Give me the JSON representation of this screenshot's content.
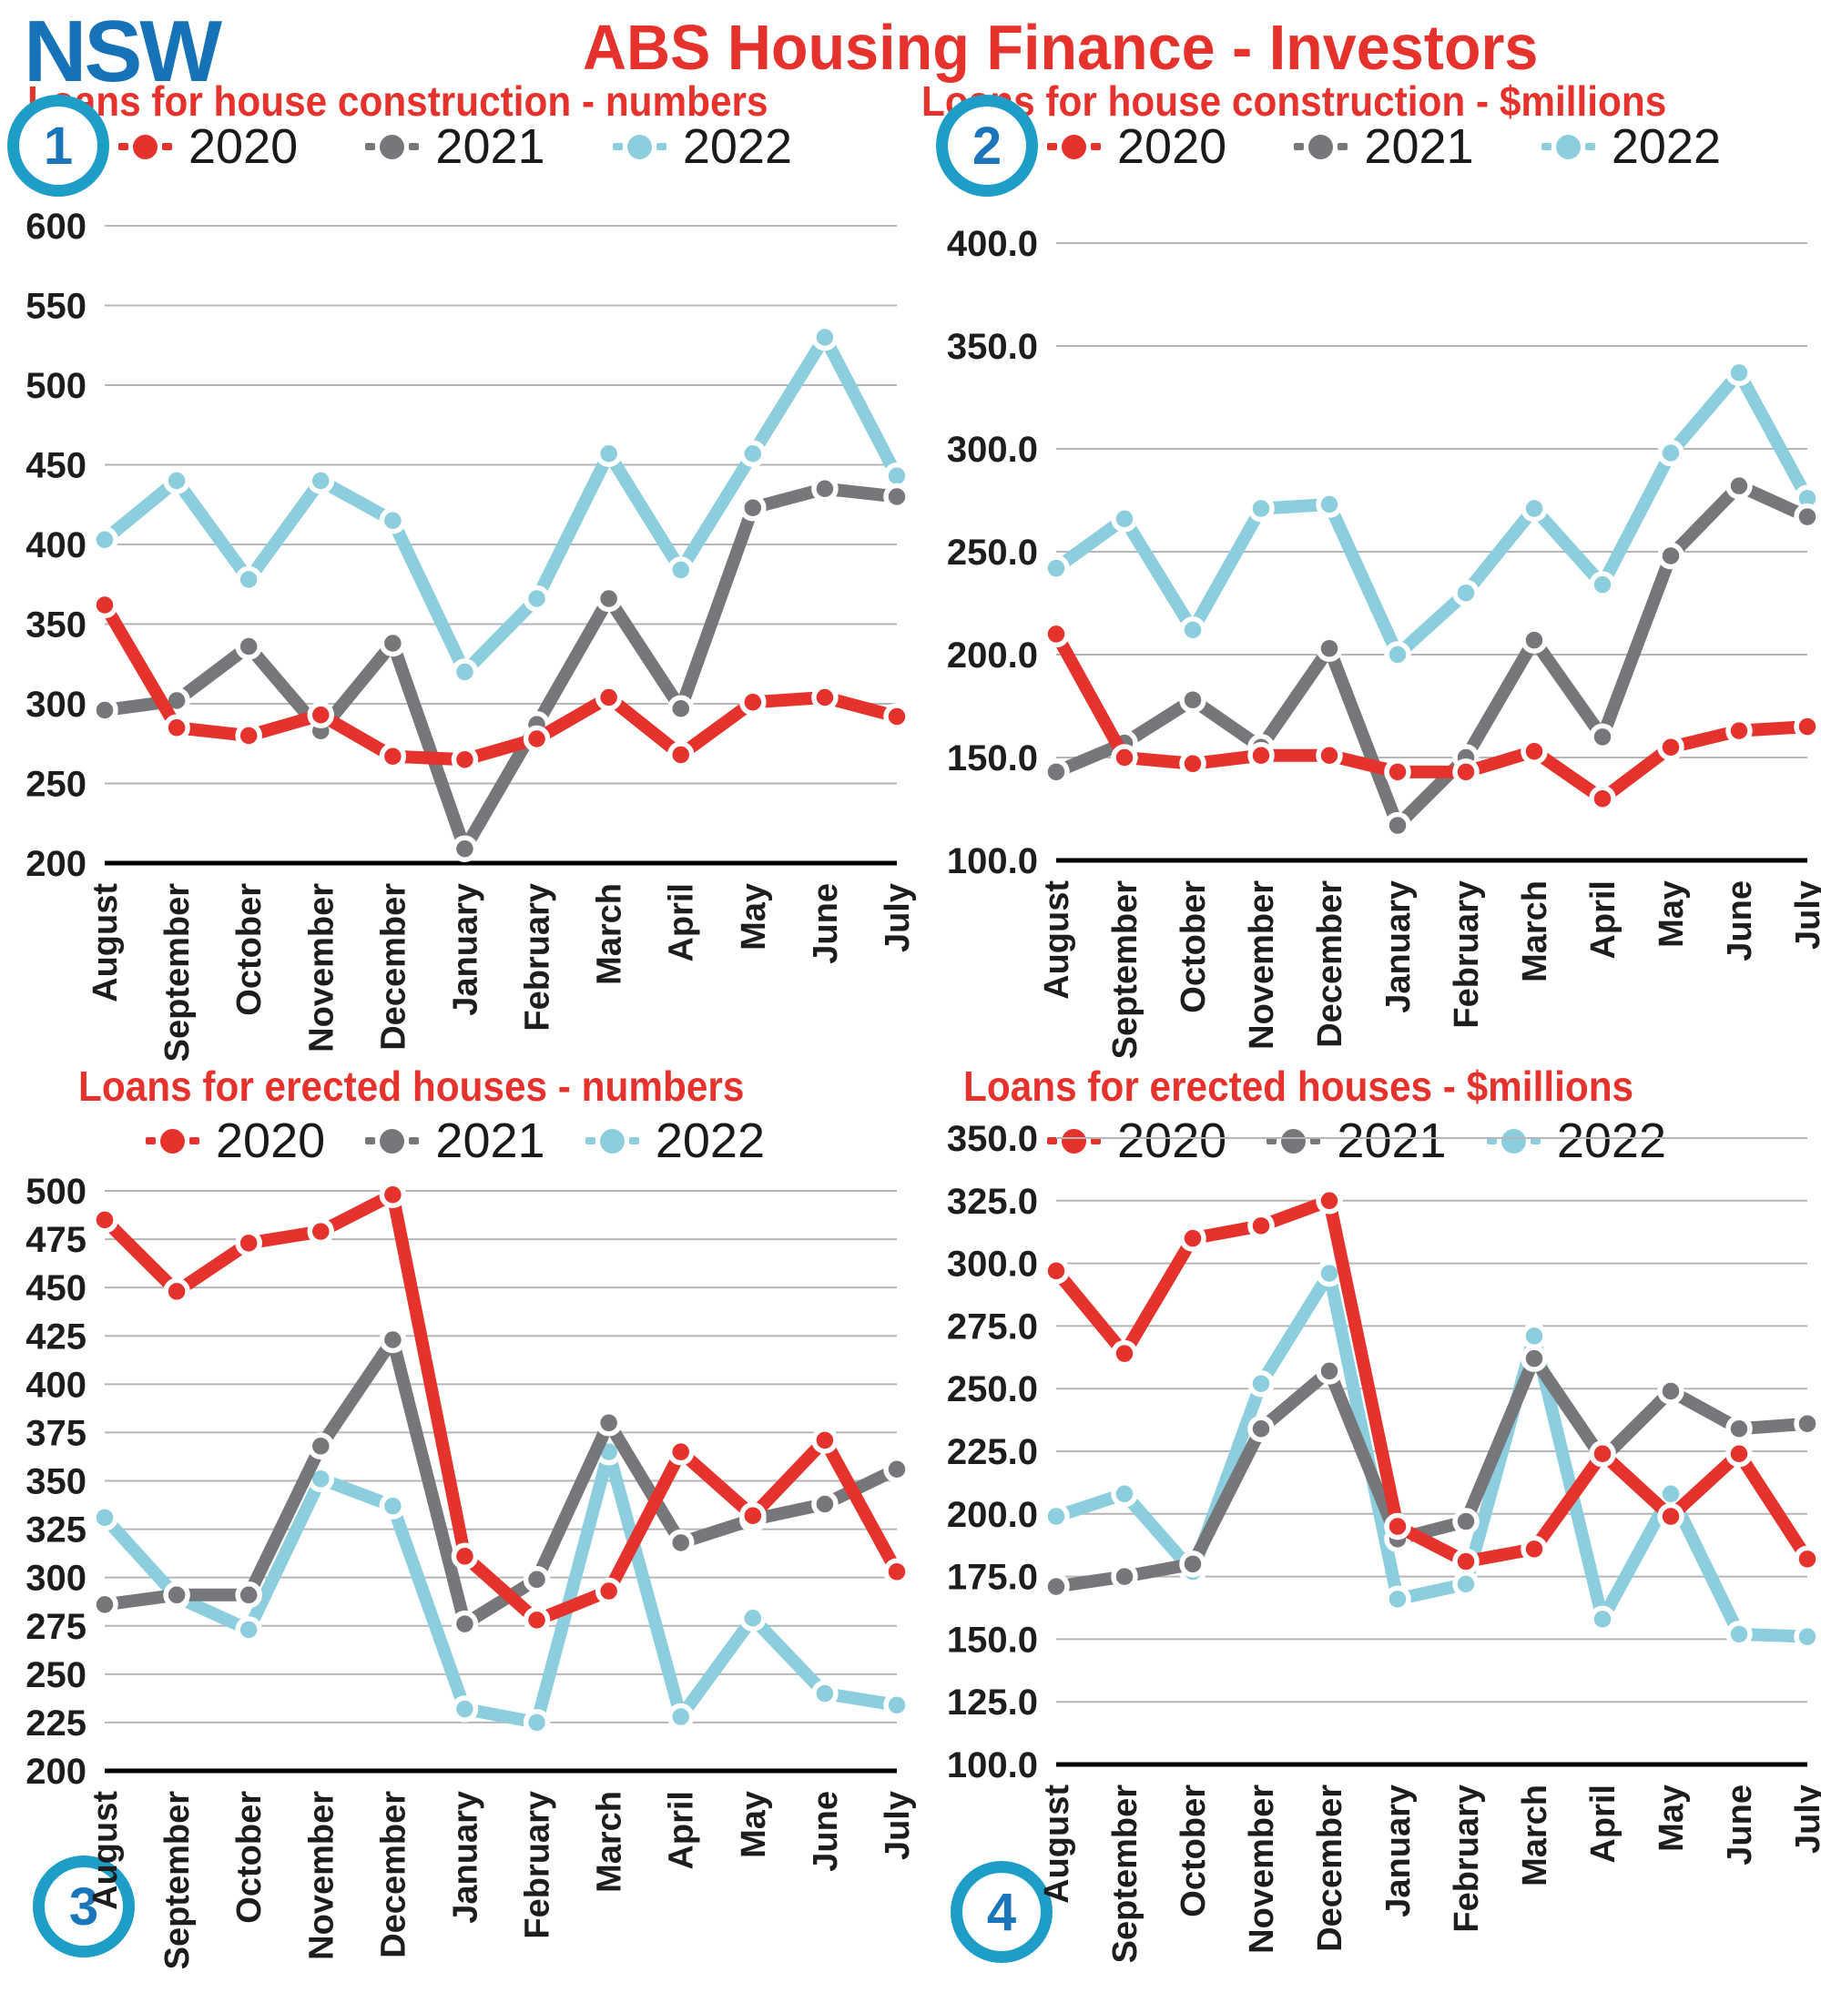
{
  "header": {
    "region": "NSW",
    "title": "ABS Housing Finance - Investors"
  },
  "palette": {
    "red_2020": "#e5322c",
    "gray_2021": "#76777a",
    "blue_2022": "#8dcede",
    "title_red": "#e5322c",
    "nsw_blue": "#1673b8",
    "badge_ring": "#1e9ec6",
    "badge_number": "#1b75bb",
    "gridline": "#b5b6b8",
    "axis": "#000000",
    "text": "#1d1d1f"
  },
  "months": [
    "August",
    "September",
    "October",
    "November",
    "December",
    "January",
    "February",
    "March",
    "April",
    "May",
    "June",
    "July"
  ],
  "legend_years": [
    "2020",
    "2021",
    "2022"
  ],
  "chart_data": [
    {
      "type": "line",
      "badge": "1",
      "title": "Loans for house construction - numbers",
      "xlabel": "",
      "ylabel": "",
      "ylim": [
        200,
        600
      ],
      "ytick_step": 50,
      "ytick_decimals": 0,
      "grid": true,
      "legend_position": "top",
      "categories": [
        "August",
        "September",
        "October",
        "November",
        "December",
        "January",
        "February",
        "March",
        "April",
        "May",
        "June",
        "July"
      ],
      "series": [
        {
          "name": "2020",
          "color": "#e5322c",
          "values": [
            362,
            285,
            280,
            293,
            267,
            265,
            278,
            304,
            268,
            301,
            304,
            292
          ]
        },
        {
          "name": "2021",
          "color": "#76777a",
          "values": [
            296,
            302,
            336,
            283,
            338,
            209,
            287,
            366,
            297,
            423,
            435,
            430
          ]
        },
        {
          "name": "2022",
          "color": "#8dcede",
          "values": [
            403,
            440,
            378,
            440,
            415,
            320,
            366,
            457,
            384,
            457,
            530,
            443
          ]
        }
      ]
    },
    {
      "type": "line",
      "badge": "2",
      "title": "Loans for house construction - $millions",
      "xlabel": "",
      "ylabel": "",
      "ylim": [
        100,
        400
      ],
      "ytick_step": 50,
      "ytick_decimals": 1,
      "grid": true,
      "legend_position": "top",
      "categories": [
        "August",
        "September",
        "October",
        "November",
        "December",
        "January",
        "February",
        "March",
        "April",
        "May",
        "June",
        "July"
      ],
      "series": [
        {
          "name": "2020",
          "color": "#e5322c",
          "values": [
            210,
            150,
            147,
            151,
            151,
            143,
            143,
            153,
            130,
            155,
            163,
            165
          ]
        },
        {
          "name": "2021",
          "color": "#76777a",
          "values": [
            143,
            157,
            178,
            155,
            203,
            117,
            150,
            207,
            160,
            248,
            282,
            267
          ]
        },
        {
          "name": "2022",
          "color": "#8dcede",
          "values": [
            242,
            266,
            212,
            271,
            273,
            200,
            230,
            271,
            234,
            298,
            337,
            276
          ]
        }
      ]
    },
    {
      "type": "line",
      "badge": "3",
      "title": "Loans for erected houses - numbers",
      "xlabel": "",
      "ylabel": "",
      "ylim": [
        200,
        500
      ],
      "ytick_step": 25,
      "ytick_decimals": 0,
      "grid": true,
      "legend_position": "top",
      "categories": [
        "August",
        "September",
        "October",
        "November",
        "December",
        "January",
        "February",
        "March",
        "April",
        "May",
        "June",
        "July"
      ],
      "series": [
        {
          "name": "2020",
          "color": "#e5322c",
          "values": [
            485,
            448,
            473,
            479,
            498,
            311,
            278,
            293,
            365,
            332,
            371,
            303
          ]
        },
        {
          "name": "2021",
          "color": "#76777a",
          "values": [
            286,
            291,
            291,
            368,
            423,
            276,
            299,
            380,
            318,
            330,
            338,
            356
          ]
        },
        {
          "name": "2022",
          "color": "#8dcede",
          "values": [
            331,
            290,
            273,
            351,
            337,
            232,
            225,
            365,
            228,
            279,
            240,
            234
          ]
        }
      ]
    },
    {
      "type": "line",
      "badge": "4",
      "title": "Loans for erected houses - $millions",
      "xlabel": "",
      "ylabel": "",
      "ylim": [
        100,
        350
      ],
      "ytick_step": 25,
      "ytick_decimals": 1,
      "grid": true,
      "legend_position": "top",
      "categories": [
        "August",
        "September",
        "October",
        "November",
        "December",
        "January",
        "February",
        "March",
        "April",
        "May",
        "June",
        "July"
      ],
      "series": [
        {
          "name": "2020",
          "color": "#e5322c",
          "values": [
            297,
            264,
            310,
            315,
            325,
            195,
            181,
            186,
            224,
            199,
            224,
            182
          ]
        },
        {
          "name": "2021",
          "color": "#76777a",
          "values": [
            171,
            175,
            180,
            234,
            257,
            190,
            197,
            262,
            222,
            249,
            234,
            236
          ]
        },
        {
          "name": "2022",
          "color": "#8dcede",
          "values": [
            199,
            208,
            177,
            252,
            296,
            166,
            172,
            271,
            158,
            208,
            152,
            151
          ]
        }
      ]
    }
  ]
}
